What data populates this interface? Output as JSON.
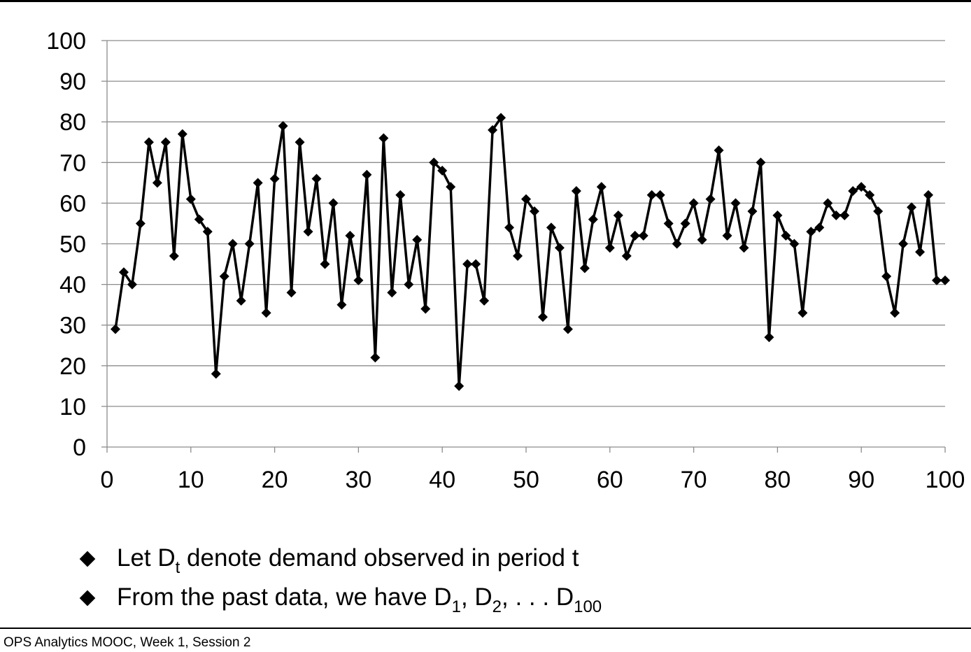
{
  "chart_data": {
    "type": "line",
    "title": "",
    "xlabel": "",
    "ylabel": "",
    "xlim": [
      0,
      100
    ],
    "ylim": [
      0,
      100
    ],
    "x_ticks": [
      0,
      10,
      20,
      30,
      40,
      50,
      60,
      70,
      80,
      90,
      100
    ],
    "y_ticks": [
      0,
      10,
      20,
      30,
      40,
      50,
      60,
      70,
      80,
      90,
      100
    ],
    "grid": "horizontal",
    "marker": "diamond",
    "line_color": "#000000",
    "grid_color": "#8c8c8c",
    "series": [
      {
        "x": [
          1,
          2,
          3,
          4,
          5,
          6,
          7,
          8,
          9,
          10,
          11,
          12,
          13,
          14,
          15,
          16,
          17,
          18,
          19,
          20,
          21,
          22,
          23,
          24,
          25,
          26,
          27,
          28,
          29,
          30,
          31,
          32,
          33,
          34,
          35,
          36,
          37,
          38,
          39,
          40,
          41,
          42,
          43,
          44,
          45,
          46,
          47,
          48,
          49,
          50,
          51,
          52,
          53,
          54,
          55,
          56,
          57,
          58,
          59,
          60,
          61,
          62,
          63,
          64,
          65,
          66,
          67,
          68,
          69,
          70,
          71,
          72,
          73,
          74,
          75,
          76,
          77,
          78,
          79,
          80,
          81,
          82,
          83,
          84,
          85,
          86,
          87,
          88,
          89,
          90,
          91,
          92,
          93,
          94,
          95,
          96,
          97,
          98,
          99,
          100
        ],
        "values": [
          29,
          43,
          40,
          55,
          75,
          65,
          75,
          47,
          77,
          61,
          56,
          53,
          18,
          42,
          50,
          36,
          50,
          65,
          33,
          66,
          79,
          38,
          75,
          53,
          66,
          45,
          60,
          35,
          52,
          41,
          67,
          22,
          76,
          38,
          62,
          40,
          51,
          34,
          70,
          68,
          64,
          15,
          45,
          45,
          36,
          78,
          81,
          54,
          47,
          61,
          58,
          32,
          54,
          49,
          29,
          63,
          44,
          56,
          64,
          49,
          57,
          47,
          52,
          52,
          62,
          62,
          55,
          50,
          55,
          60,
          51,
          61,
          73,
          52,
          60,
          49,
          58,
          70,
          27,
          57,
          52,
          50,
          33,
          53,
          54,
          60,
          57,
          57,
          63,
          64,
          62,
          58,
          42,
          33,
          50,
          59,
          48,
          62,
          41,
          41
        ]
      }
    ]
  },
  "bullets": [
    {
      "pre": "Let D",
      "sub": "t",
      "post": " denote demand observed in period t"
    },
    {
      "pre": "From the past data,  we have D",
      "sub1": "1",
      "mid1": ", D",
      "sub2": "2",
      "mid2": ", . . . D",
      "sub3": "100"
    }
  ],
  "footer": {
    "text": "OPS Analytics MOOC, Week 1, Session 2"
  }
}
